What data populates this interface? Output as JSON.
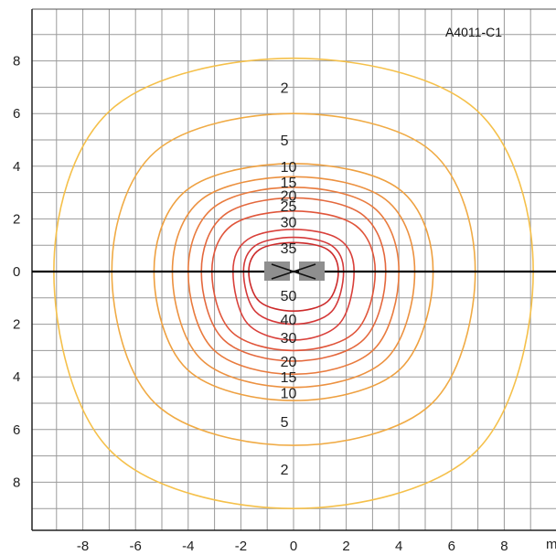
{
  "chart_data": {
    "type": "contour",
    "code_label": "A4011-C1",
    "x_unit": "m",
    "x_ticks": [
      -8,
      -6,
      -4,
      -2,
      0,
      2,
      4,
      6,
      8
    ],
    "y_ticks_upper": [
      8,
      6,
      4,
      2,
      0
    ],
    "y_ticks_lower": [
      2,
      4,
      6,
      8
    ],
    "xlim": [
      -10,
      10
    ],
    "ylim": [
      -10,
      10
    ],
    "grid": true,
    "colors": {
      "line_2": "#f5c04a",
      "line_5": "#f0ab45",
      "line_10": "#eea040",
      "line_15": "#ec9140",
      "line_20": "#e97b3e",
      "line_25": "#e4683d",
      "line_30": "#e0553a",
      "line_35": "#d9403a",
      "line_40": "#d43838",
      "line_50": "#cc2a2a",
      "axis": "#000000",
      "grid": "#9a9a9a",
      "device": "#8f8f8f"
    },
    "contours": [
      {
        "level": 2,
        "upper_reach": 8.1,
        "lower_reach": 9.0,
        "half_width": 9.1
      },
      {
        "level": 5,
        "upper_reach": 6.0,
        "lower_reach": 6.6,
        "half_width": 6.9
      },
      {
        "level": 10,
        "upper_reach": 4.1,
        "lower_reach": 4.9,
        "half_width": 5.3
      },
      {
        "level": 15,
        "upper_reach": 3.6,
        "lower_reach": 4.4,
        "half_width": 4.6
      },
      {
        "level": 20,
        "upper_reach": 3.2,
        "lower_reach": 3.9,
        "half_width": 4.0
      },
      {
        "level": 25,
        "upper_reach": 2.8,
        "lower_reach": 3.4,
        "half_width": 3.5
      },
      {
        "level": 30,
        "upper_reach": 2.3,
        "lower_reach": 3.0,
        "half_width": 3.1
      },
      {
        "level": 35,
        "upper_reach": 1.6,
        "lower_reach": 2.6,
        "half_width": 2.3
      },
      {
        "level": 40,
        "upper_reach": 1.3,
        "lower_reach": 2.0,
        "half_width": 1.9
      },
      {
        "level": 50,
        "upper_reach": 1.1,
        "lower_reach": 1.5,
        "half_width": 1.7
      }
    ],
    "contour_labels": [
      {
        "text": "2",
        "x": -0.5,
        "y": 7.0
      },
      {
        "text": "5",
        "x": -0.5,
        "y": 5.0
      },
      {
        "text": "10",
        "x": -0.5,
        "y": 4.0
      },
      {
        "text": "15",
        "x": -0.5,
        "y": 3.4
      },
      {
        "text": "20",
        "x": -0.5,
        "y": 2.9
      },
      {
        "text": "25",
        "x": -0.5,
        "y": 2.5
      },
      {
        "text": "30",
        "x": -0.5,
        "y": 1.9
      },
      {
        "text": "35",
        "x": -0.5,
        "y": 0.9
      },
      {
        "text": "50",
        "x": -0.5,
        "y": -0.9
      },
      {
        "text": "40",
        "x": -0.5,
        "y": -1.8
      },
      {
        "text": "30",
        "x": -0.5,
        "y": -2.5
      },
      {
        "text": "20",
        "x": -0.5,
        "y": -3.4
      },
      {
        "text": "15",
        "x": -0.5,
        "y": -4.0
      },
      {
        "text": "10",
        "x": -0.5,
        "y": -4.6
      },
      {
        "text": "5",
        "x": -0.5,
        "y": -5.7
      },
      {
        "text": "2",
        "x": -0.5,
        "y": -7.5
      }
    ]
  }
}
